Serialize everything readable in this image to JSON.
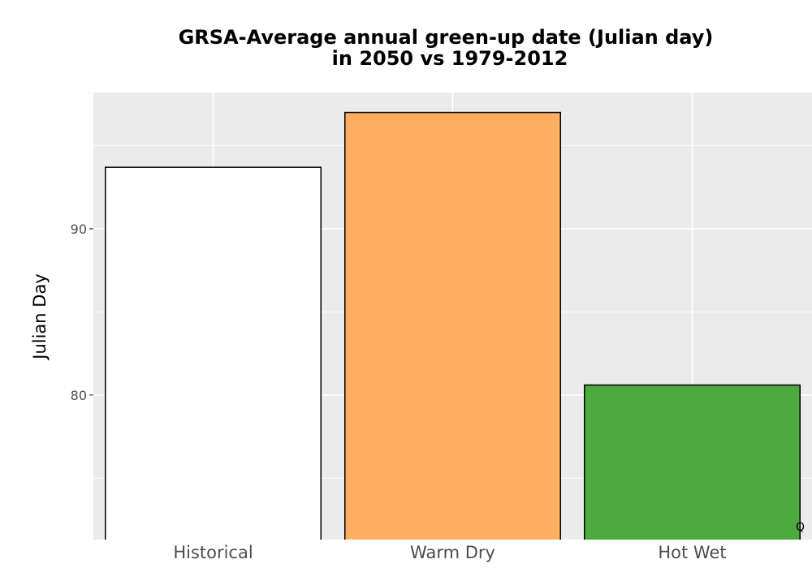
{
  "chart_data": {
    "type": "bar",
    "title_lines": [
      "GRSA-Average annual green-up date (Julian day)",
      "in 2050 vs 1979-2012"
    ],
    "xlabel": "",
    "ylabel": "Julian Day",
    "categories": [
      "Historical",
      "Warm Dry",
      "Hot Wet"
    ],
    "values": [
      93.7,
      97.0,
      80.6
    ],
    "colors": [
      "#ffffff",
      "#fdae61",
      "#4daa3f"
    ],
    "bar_border": "#000000",
    "ylim": [
      71.3,
      98.2
    ],
    "yticks": [
      80,
      90
    ],
    "yticks_minor": [
      75,
      85,
      95
    ],
    "grid": true,
    "panel_background": "#ebebeb",
    "corner_label": "Q"
  }
}
